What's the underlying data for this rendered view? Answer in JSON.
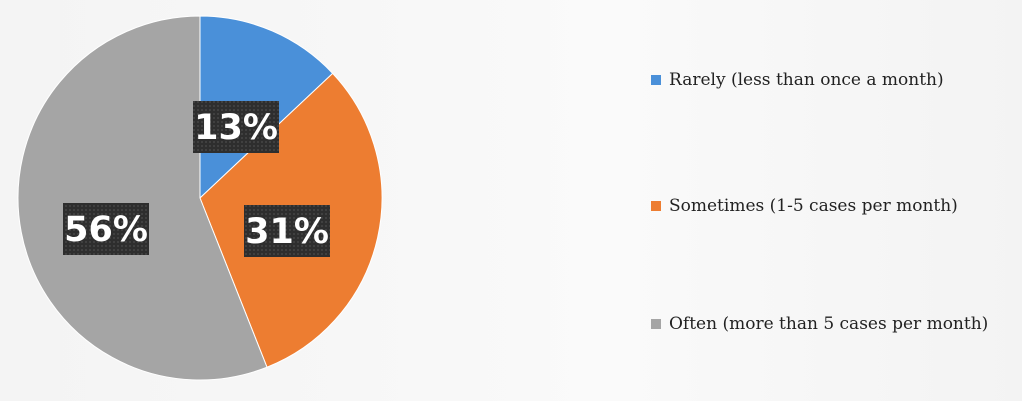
{
  "chart_data": {
    "type": "pie",
    "categories": [
      "Rarely (less than once a month)",
      "Sometimes (1-5 cases per month)",
      "Often (more than 5 cases per month)"
    ],
    "values": [
      13,
      31,
      56
    ],
    "labels": [
      "13%",
      "31%",
      "56%"
    ],
    "colors": [
      "#4a90d9",
      "#ed7d31",
      "#a5a5a5"
    ],
    "start_angle_deg": 0,
    "direction": "clockwise",
    "legend": "right"
  }
}
